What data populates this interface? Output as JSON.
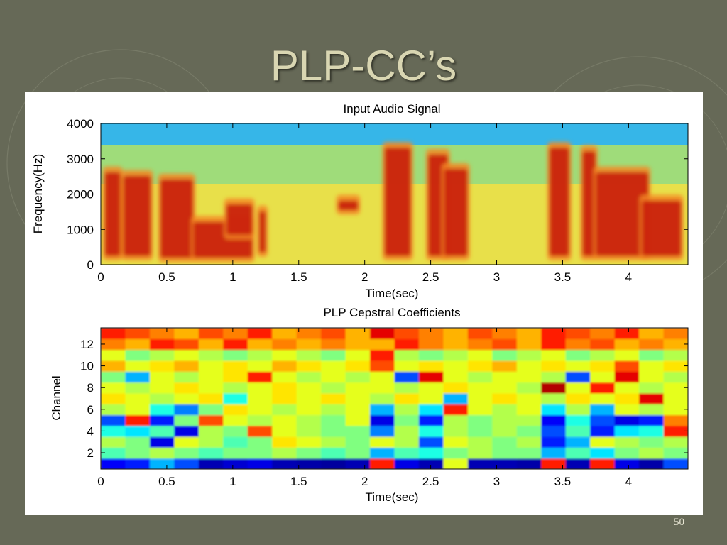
{
  "slide": {
    "title": "PLP-CC’s",
    "page_number": "50"
  },
  "chart_data": [
    {
      "type": "heatmap",
      "title": "Input Audio Signal",
      "xlabel": "Time(sec)",
      "ylabel": "Frequency(Hz)",
      "xlim": [
        0,
        4.45
      ],
      "ylim": [
        0,
        4000
      ],
      "xticks": [
        0,
        0.5,
        1,
        1.5,
        2,
        2.5,
        3,
        3.5,
        4
      ],
      "xtick_labels": [
        "0",
        "0.5",
        "1",
        "1.5",
        "2",
        "2.5",
        "3",
        "3.5",
        "4"
      ],
      "yticks": [
        0,
        1000,
        2000,
        3000,
        4000
      ],
      "ytick_labels": [
        "0",
        "1000",
        "2000",
        "3000",
        "4000"
      ],
      "colormap": "jet",
      "high_energy_regions": [
        {
          "t_start": 0.03,
          "t_end": 0.15,
          "f_low": 200,
          "f_high": 2700
        },
        {
          "t_start": 0.17,
          "t_end": 0.38,
          "f_low": 200,
          "f_high": 2600
        },
        {
          "t_start": 0.45,
          "t_end": 0.7,
          "f_low": 150,
          "f_high": 2500
        },
        {
          "t_start": 0.7,
          "t_end": 1.15,
          "f_low": 150,
          "f_high": 1300
        },
        {
          "t_start": 0.95,
          "t_end": 1.15,
          "f_low": 800,
          "f_high": 1800
        },
        {
          "t_start": 1.2,
          "t_end": 1.25,
          "f_low": 300,
          "f_high": 1600
        },
        {
          "t_start": 1.8,
          "t_end": 1.95,
          "f_low": 1500,
          "f_high": 1900
        },
        {
          "t_start": 2.15,
          "t_end": 2.35,
          "f_low": 200,
          "f_high": 3400
        },
        {
          "t_start": 2.48,
          "t_end": 2.63,
          "f_low": 200,
          "f_high": 3200
        },
        {
          "t_start": 2.6,
          "t_end": 2.78,
          "f_low": 200,
          "f_high": 2800
        },
        {
          "t_start": 3.4,
          "t_end": 3.55,
          "f_low": 200,
          "f_high": 3400
        },
        {
          "t_start": 3.65,
          "t_end": 3.75,
          "f_low": 200,
          "f_high": 3300
        },
        {
          "t_start": 3.75,
          "t_end": 4.15,
          "f_low": 200,
          "f_high": 2700
        },
        {
          "t_start": 4.1,
          "t_end": 4.4,
          "f_low": 200,
          "f_high": 1900
        }
      ]
    },
    {
      "type": "heatmap",
      "title": "PLP Cepstral Coefficients",
      "xlabel": "Time(sec)",
      "ylabel": "Channel",
      "xlim": [
        0,
        4.45
      ],
      "ylim": [
        0.5,
        13.5
      ],
      "channels": [
        1,
        2,
        3,
        4,
        5,
        6,
        7,
        8,
        9,
        10,
        11,
        12,
        13
      ],
      "xticks": [
        0,
        0.5,
        1,
        1.5,
        2,
        2.5,
        3,
        3.5,
        4
      ],
      "xtick_labels": [
        "0",
        "0.5",
        "1",
        "1.5",
        "2",
        "2.5",
        "3",
        "3.5",
        "4"
      ],
      "yticks": [
        2,
        4,
        6,
        8,
        10,
        12
      ],
      "ytick_labels": [
        "2",
        "4",
        "6",
        "8",
        "10",
        "12"
      ],
      "colormap": "jet",
      "time_bins": 24,
      "values": [
        [
          0.12,
          0.15,
          0.3,
          0.2,
          0.05,
          0.08,
          0.1,
          0.05,
          0.04,
          0.03,
          0.05,
          0.85,
          0.1,
          0.05,
          0.6,
          0.05,
          0.05,
          0.04,
          0.85,
          0.05,
          0.85,
          0.1,
          0.04,
          0.2
        ],
        [
          0.45,
          0.5,
          0.55,
          0.5,
          0.45,
          0.5,
          0.5,
          0.55,
          0.5,
          0.45,
          0.5,
          0.3,
          0.45,
          0.4,
          0.5,
          0.55,
          0.5,
          0.5,
          0.3,
          0.45,
          0.35,
          0.5,
          0.55,
          0.5
        ],
        [
          0.55,
          0.5,
          0.1,
          0.6,
          0.55,
          0.45,
          0.5,
          0.65,
          0.6,
          0.55,
          0.5,
          0.6,
          0.55,
          0.2,
          0.6,
          0.55,
          0.5,
          0.55,
          0.15,
          0.3,
          0.6,
          0.55,
          0.5,
          0.55
        ],
        [
          0.4,
          0.35,
          0.45,
          0.1,
          0.55,
          0.5,
          0.8,
          0.6,
          0.55,
          0.5,
          0.5,
          0.25,
          0.55,
          0.4,
          0.55,
          0.5,
          0.55,
          0.5,
          0.2,
          0.45,
          0.15,
          0.35,
          0.4,
          0.85
        ],
        [
          0.2,
          0.85,
          0.15,
          0.5,
          0.8,
          0.6,
          0.55,
          0.6,
          0.55,
          0.5,
          0.6,
          0.1,
          0.5,
          0.15,
          0.55,
          0.5,
          0.55,
          0.55,
          0.12,
          0.4,
          0.2,
          0.1,
          0.15,
          0.75
        ],
        [
          0.55,
          0.6,
          0.4,
          0.25,
          0.5,
          0.65,
          0.6,
          0.55,
          0.6,
          0.55,
          0.6,
          0.3,
          0.55,
          0.35,
          0.85,
          0.6,
          0.55,
          0.6,
          0.35,
          0.55,
          0.3,
          0.6,
          0.55,
          0.6
        ],
        [
          0.65,
          0.6,
          0.55,
          0.6,
          0.65,
          0.4,
          0.6,
          0.65,
          0.6,
          0.65,
          0.6,
          0.55,
          0.65,
          0.6,
          0.3,
          0.6,
          0.65,
          0.6,
          0.55,
          0.65,
          0.6,
          0.65,
          0.9,
          0.6
        ],
        [
          0.6,
          0.55,
          0.6,
          0.65,
          0.6,
          0.55,
          0.6,
          0.65,
          0.6,
          0.55,
          0.6,
          0.6,
          0.55,
          0.6,
          0.65,
          0.6,
          0.6,
          0.55,
          0.95,
          0.6,
          0.85,
          0.6,
          0.55,
          0.6
        ],
        [
          0.5,
          0.3,
          0.6,
          0.55,
          0.6,
          0.65,
          0.85,
          0.6,
          0.55,
          0.6,
          0.55,
          0.6,
          0.2,
          0.9,
          0.6,
          0.55,
          0.6,
          0.6,
          0.55,
          0.2,
          0.6,
          0.9,
          0.6,
          0.55
        ],
        [
          0.7,
          0.6,
          0.65,
          0.7,
          0.6,
          0.65,
          0.6,
          0.7,
          0.65,
          0.6,
          0.65,
          0.8,
          0.6,
          0.65,
          0.6,
          0.65,
          0.7,
          0.6,
          0.65,
          0.6,
          0.65,
          0.8,
          0.6,
          0.65
        ],
        [
          0.6,
          0.5,
          0.55,
          0.6,
          0.55,
          0.5,
          0.55,
          0.6,
          0.55,
          0.5,
          0.6,
          0.85,
          0.55,
          0.5,
          0.55,
          0.6,
          0.5,
          0.55,
          0.6,
          0.5,
          0.55,
          0.6,
          0.5,
          0.55
        ],
        [
          0.75,
          0.7,
          0.85,
          0.8,
          0.7,
          0.85,
          0.7,
          0.75,
          0.7,
          0.75,
          0.7,
          0.7,
          0.85,
          0.75,
          0.7,
          0.75,
          0.8,
          0.7,
          0.85,
          0.75,
          0.8,
          0.7,
          0.75,
          0.7
        ],
        [
          0.85,
          0.8,
          0.75,
          0.7,
          0.8,
          0.75,
          0.85,
          0.7,
          0.75,
          0.8,
          0.7,
          0.9,
          0.8,
          0.75,
          0.7,
          0.8,
          0.75,
          0.7,
          0.85,
          0.8,
          0.75,
          0.85,
          0.7,
          0.75
        ]
      ]
    }
  ]
}
